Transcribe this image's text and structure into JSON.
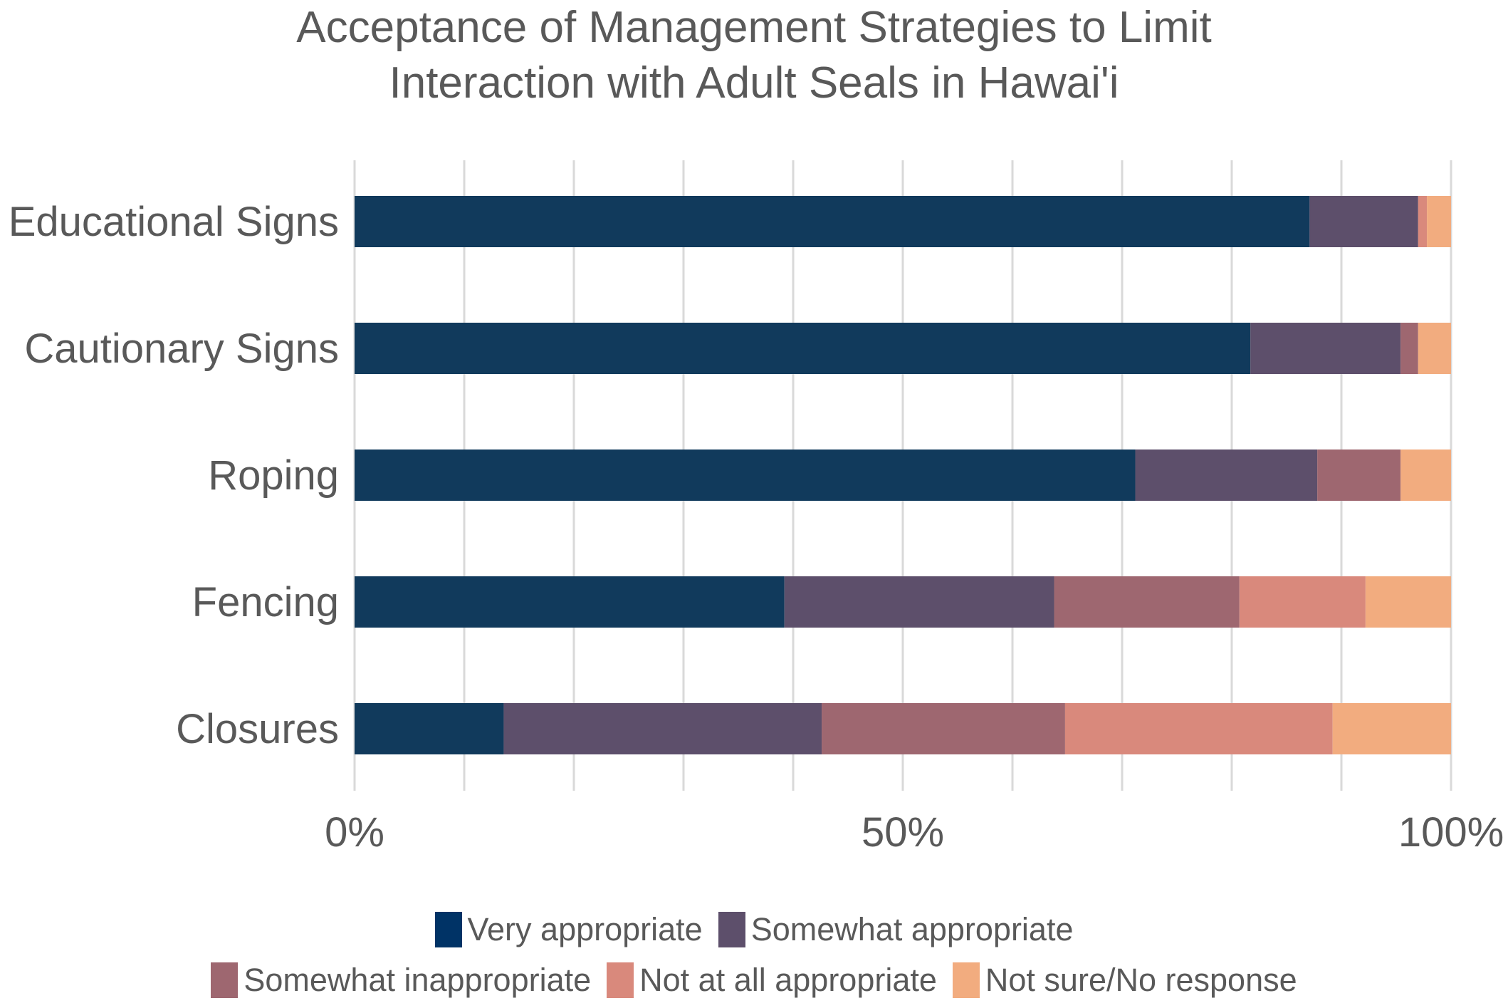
{
  "chart_data": {
    "type": "bar",
    "orientation": "horizontal",
    "stacked": "percent",
    "title_lines": [
      "Acceptance of Management Strategies to Limit",
      "Interaction with Adult Seals in Hawai'i"
    ],
    "categories": [
      "Educational Signs",
      "Cautionary Signs",
      "Roping",
      "Fencing",
      "Closures"
    ],
    "series": [
      {
        "name": "Very appropriate",
        "color": "#113A5C",
        "legend_color": "#003366",
        "values": [
          87.1,
          81.7,
          71.2,
          39.2,
          13.6
        ]
      },
      {
        "name": "Somewhat appropriate",
        "color": "#5D4F6B",
        "values": [
          9.9,
          13.7,
          16.6,
          24.6,
          29.0
        ]
      },
      {
        "name": "Somewhat inappropriate",
        "color": "#9E6770",
        "values": [
          0.0,
          1.6,
          7.6,
          16.9,
          22.2
        ]
      },
      {
        "name": "Not at all appropriate",
        "color": "#D9897C",
        "values": [
          0.8,
          0.0,
          0.0,
          11.5,
          24.4
        ]
      },
      {
        "name": "Not sure/No response",
        "color": "#F2AC7F",
        "values": [
          2.2,
          3.0,
          4.6,
          7.8,
          10.8
        ]
      }
    ],
    "xlim": [
      0,
      100
    ],
    "x_ticks": [
      0,
      50,
      100
    ],
    "x_tick_labels": [
      "0%",
      "50%",
      "100%"
    ],
    "gridlines_every": 10,
    "grid": true,
    "legend_position": "bottom",
    "legend_rows": [
      [
        "Very appropriate",
        "Somewhat appropriate"
      ],
      [
        "Somewhat inappropriate",
        "Not at all appropriate",
        "Not sure/No response"
      ]
    ]
  }
}
